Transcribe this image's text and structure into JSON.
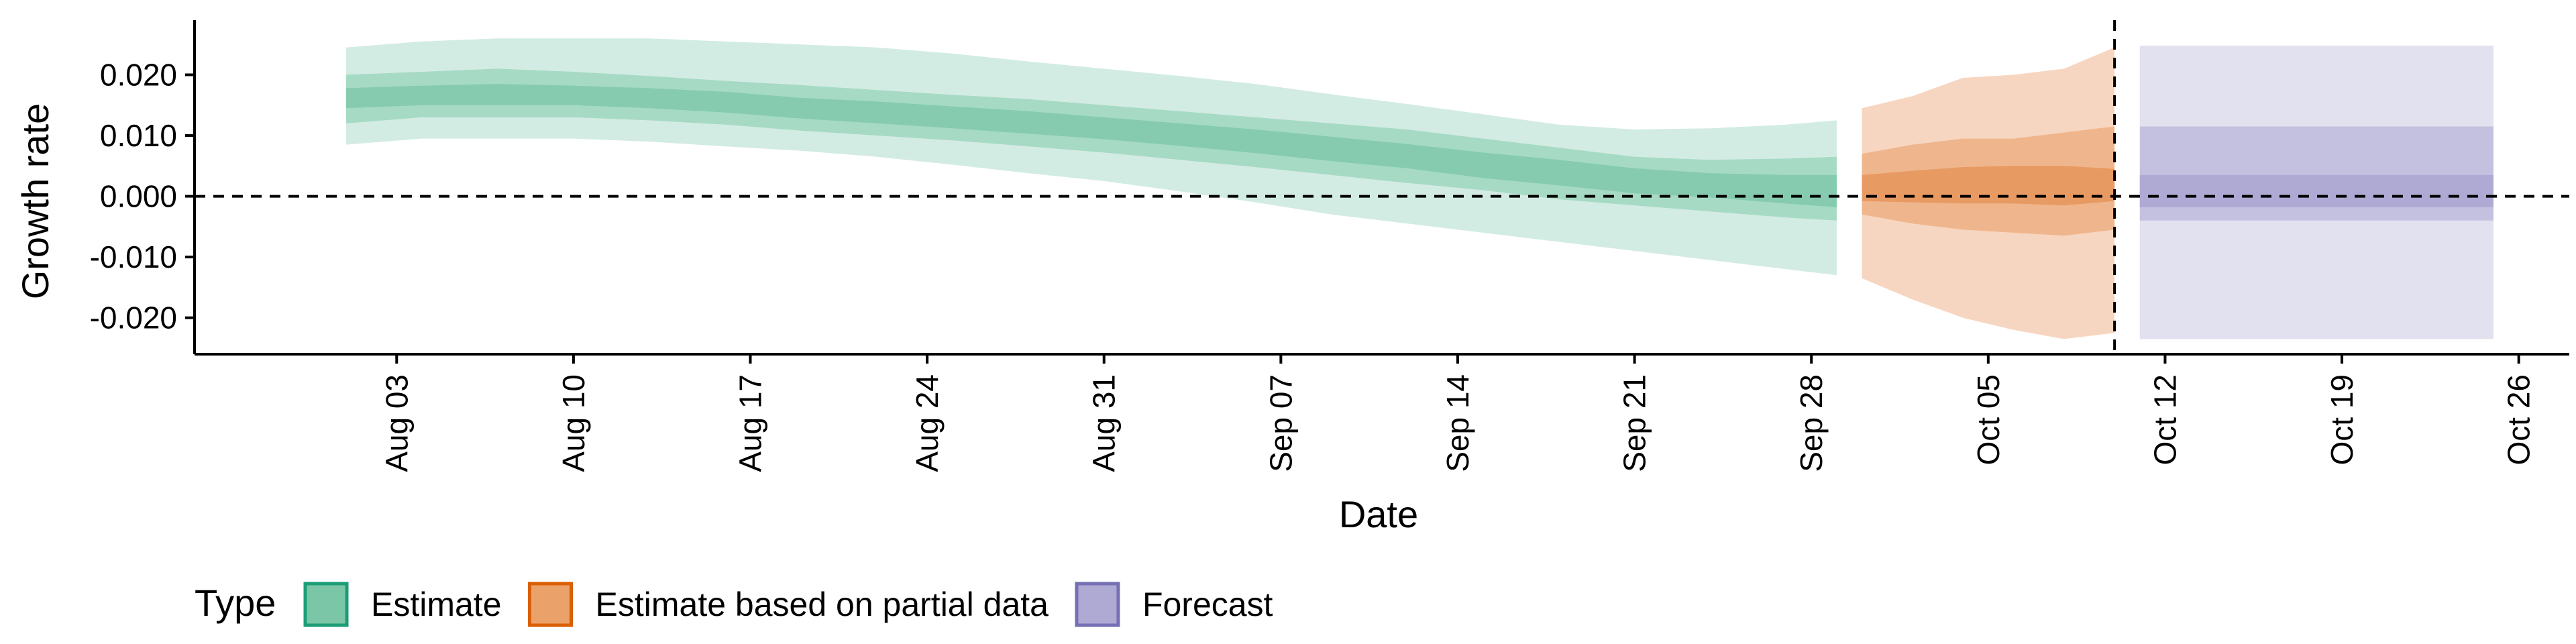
{
  "chart_data": {
    "type": "area",
    "title": "",
    "xlabel": "Date",
    "ylabel": "Growth rate",
    "x_range": [
      "2020-07-26",
      "2020-10-28"
    ],
    "ylim": [
      -0.026,
      0.029
    ],
    "x_ticks": [
      {
        "date": "2020-08-03",
        "label": "Aug 03"
      },
      {
        "date": "2020-08-10",
        "label": "Aug 10"
      },
      {
        "date": "2020-08-17",
        "label": "Aug 17"
      },
      {
        "date": "2020-08-24",
        "label": "Aug 24"
      },
      {
        "date": "2020-08-31",
        "label": "Aug 31"
      },
      {
        "date": "2020-09-07",
        "label": "Sep 07"
      },
      {
        "date": "2020-09-14",
        "label": "Sep 14"
      },
      {
        "date": "2020-09-21",
        "label": "Sep 21"
      },
      {
        "date": "2020-09-28",
        "label": "Sep 28"
      },
      {
        "date": "2020-10-05",
        "label": "Oct 05"
      },
      {
        "date": "2020-10-12",
        "label": "Oct 12"
      },
      {
        "date": "2020-10-19",
        "label": "Oct 19"
      },
      {
        "date": "2020-10-26",
        "label": "Oct 26"
      }
    ],
    "y_ticks": [
      {
        "value": 0.02,
        "label": "0.020"
      },
      {
        "value": 0.01,
        "label": "0.010"
      },
      {
        "value": 0.0,
        "label": "0.000"
      },
      {
        "value": -0.01,
        "label": "-0.010"
      },
      {
        "value": -0.02,
        "label": "-0.020"
      }
    ],
    "reference_lines": {
      "horizontal_y": 0.0,
      "vertical_date": "2020-10-10"
    },
    "grid": false,
    "legend": {
      "title": "Type",
      "position": "bottom-left",
      "entries": [
        {
          "label": "Estimate",
          "fill": "#7cc6a8",
          "stroke": "#1b9e77"
        },
        {
          "label": "Estimate based on partial data",
          "fill": "#eba16a",
          "stroke": "#d95f02"
        },
        {
          "label": "Forecast",
          "fill": "#aeaad4",
          "stroke": "#7570b3"
        }
      ]
    },
    "series": [
      {
        "name": "Estimate",
        "colors": {
          "outer": "#d3ece3",
          "mid": "#a6dac5",
          "inner": "#86cbb0"
        },
        "x": [
          "2020-08-01",
          "2020-08-04",
          "2020-08-07",
          "2020-08-10",
          "2020-08-13",
          "2020-08-16",
          "2020-08-19",
          "2020-08-22",
          "2020-08-25",
          "2020-08-28",
          "2020-08-31",
          "2020-09-03",
          "2020-09-06",
          "2020-09-09",
          "2020-09-12",
          "2020-09-15",
          "2020-09-18",
          "2020-09-21",
          "2020-09-24",
          "2020-09-27",
          "2020-09-29"
        ],
        "median": [
          0.016,
          0.0162,
          0.0165,
          0.0168,
          0.0162,
          0.0155,
          0.0145,
          0.0138,
          0.013,
          0.0122,
          0.0112,
          0.0103,
          0.0092,
          0.008,
          0.0068,
          0.0052,
          0.004,
          0.0025,
          0.0018,
          0.0012,
          0.001
        ],
        "lower_90": [
          0.0085,
          0.0095,
          0.0095,
          0.0095,
          0.009,
          0.0082,
          0.0075,
          0.0065,
          0.0052,
          0.0038,
          0.0025,
          0.0008,
          -0.001,
          -0.003,
          -0.0045,
          -0.006,
          -0.0075,
          -0.009,
          -0.0105,
          -0.012,
          -0.013
        ],
        "upper_90": [
          0.0245,
          0.0255,
          0.026,
          0.026,
          0.026,
          0.0255,
          0.025,
          0.0245,
          0.0235,
          0.0222,
          0.021,
          0.0198,
          0.0185,
          0.0168,
          0.0152,
          0.0135,
          0.0118,
          0.011,
          0.0112,
          0.0118,
          0.0125
        ],
        "lower_50": [
          0.012,
          0.013,
          0.013,
          0.013,
          0.0125,
          0.0118,
          0.0108,
          0.01,
          0.0092,
          0.0082,
          0.0072,
          0.006,
          0.0048,
          0.0035,
          0.0022,
          0.001,
          -0.0005,
          -0.0015,
          -0.0025,
          -0.0035,
          -0.004
        ],
        "upper_50": [
          0.02,
          0.0205,
          0.021,
          0.0205,
          0.0198,
          0.019,
          0.0183,
          0.0175,
          0.0167,
          0.016,
          0.015,
          0.014,
          0.013,
          0.012,
          0.011,
          0.0095,
          0.008,
          0.0065,
          0.006,
          0.0062,
          0.0065
        ],
        "lower_20": [
          0.0145,
          0.015,
          0.015,
          0.015,
          0.0145,
          0.0138,
          0.0128,
          0.012,
          0.0112,
          0.0103,
          0.0094,
          0.0083,
          0.0071,
          0.0058,
          0.0046,
          0.003,
          0.0018,
          0.0005,
          -0.0002,
          -0.0012,
          -0.0018
        ],
        "upper_20": [
          0.0178,
          0.0182,
          0.0185,
          0.0182,
          0.0178,
          0.0172,
          0.0162,
          0.0156,
          0.0148,
          0.014,
          0.013,
          0.012,
          0.011,
          0.0098,
          0.0086,
          0.0072,
          0.006,
          0.0046,
          0.0038,
          0.0035,
          0.0035
        ]
      },
      {
        "name": "Estimate based on partial data",
        "colors": {
          "outer": "#f7d6c1",
          "mid": "#efb68d",
          "inner": "#e89a63"
        },
        "x": [
          "2020-09-30",
          "2020-10-02",
          "2020-10-04",
          "2020-10-06",
          "2020-10-08",
          "2020-10-10"
        ],
        "median": [
          0.001,
          0.0012,
          0.0012,
          0.0014,
          0.0012,
          0.0008
        ],
        "lower_90": [
          -0.0135,
          -0.017,
          -0.02,
          -0.022,
          -0.0235,
          -0.0225
        ],
        "upper_90": [
          0.0145,
          0.0165,
          0.0195,
          0.02,
          0.021,
          0.0245
        ],
        "lower_50": [
          -0.003,
          -0.0045,
          -0.0055,
          -0.006,
          -0.0065,
          -0.0055
        ],
        "upper_50": [
          0.007,
          0.0085,
          0.0095,
          0.0095,
          0.0105,
          0.0115
        ],
        "lower_20": [
          -0.0008,
          -0.001,
          -0.0012,
          -0.0012,
          -0.0015,
          -0.0008
        ],
        "upper_20": [
          0.0035,
          0.0042,
          0.0048,
          0.005,
          0.005,
          0.0045
        ]
      },
      {
        "name": "Forecast",
        "colors": {
          "outer": "#e2e1ef",
          "mid": "#c4c1e0",
          "inner": "#aeaad4"
        },
        "x": [
          "2020-10-11",
          "2020-10-25"
        ],
        "median": [
          0.0002,
          0.0002
        ],
        "lower_90": [
          -0.0235,
          -0.0235
        ],
        "upper_90": [
          0.0248,
          0.0248
        ],
        "lower_50": [
          -0.004,
          -0.004
        ],
        "upper_50": [
          0.0115,
          0.0115
        ],
        "lower_20": [
          -0.0018,
          -0.0018
        ],
        "upper_20": [
          0.0035,
          0.0035
        ]
      }
    ]
  }
}
